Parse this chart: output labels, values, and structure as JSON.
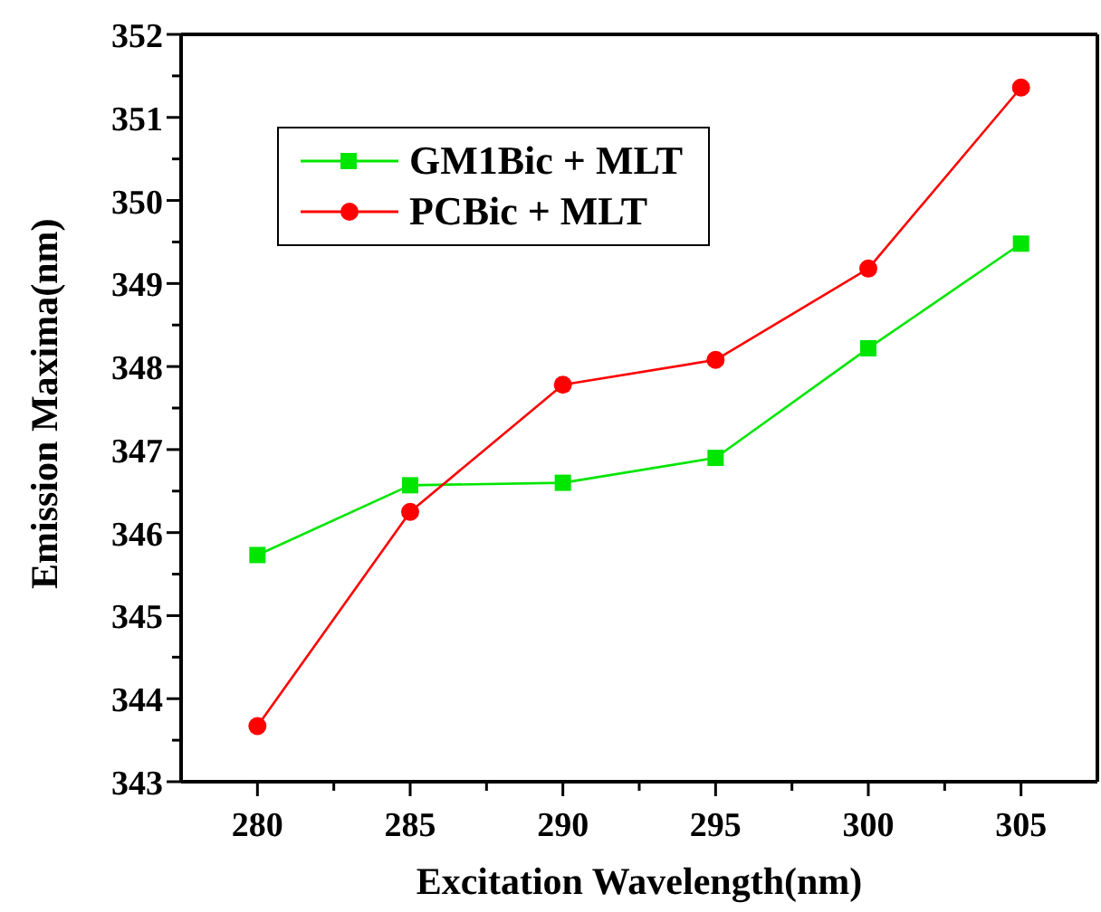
{
  "chart_data": {
    "type": "line",
    "xlabel": "Excitation Wavelength(nm)",
    "ylabel": "Emission Maxima(nm)",
    "x": [
      280,
      285,
      290,
      295,
      300,
      305
    ],
    "series": [
      {
        "name": "GM1Bic + MLT",
        "color": "#00e600",
        "values": [
          345.73,
          346.57,
          346.6,
          346.9,
          348.22,
          349.48
        ],
        "marker": "square"
      },
      {
        "name": "PCBic + MLT",
        "color": "#ff0000",
        "values": [
          343.67,
          346.25,
          347.78,
          348.08,
          349.18,
          351.36
        ],
        "marker": "circle"
      }
    ],
    "xlim": [
      277.5,
      307.5
    ],
    "xticks": [
      280,
      {
        "value": 282.5,
        "label": null
      },
      285,
      {
        "value": 287.5,
        "label": null
      },
      290,
      {
        "value": 292.5,
        "label": null
      },
      295,
      {
        "value": 297.5,
        "label": null
      },
      300,
      {
        "value": 302.5,
        "label": null
      },
      305
    ],
    "ylim": [
      343,
      352
    ],
    "yticks": [
      343,
      {
        "value": 343.5,
        "label": null
      },
      344,
      {
        "value": 344.5,
        "label": null
      },
      345,
      {
        "value": 345.5,
        "label": null
      },
      346,
      {
        "value": 346.5,
        "label": null
      },
      347,
      {
        "value": 347.5,
        "label": null
      },
      348,
      {
        "value": 348.5,
        "label": null
      },
      349,
      {
        "value": 349.5,
        "label": null
      },
      350,
      {
        "value": 350.5,
        "label": null
      },
      351,
      {
        "value": 351.5,
        "label": null
      },
      352
    ],
    "grid": false,
    "legend": "top left",
    "line_style": "solid"
  }
}
